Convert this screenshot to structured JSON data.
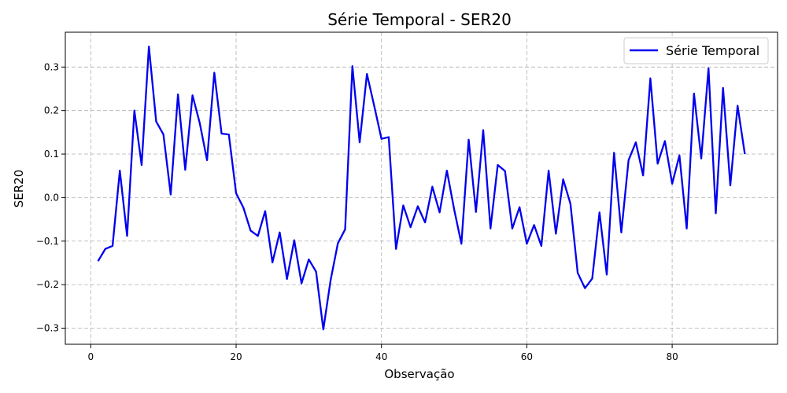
{
  "chart_data": {
    "type": "line",
    "title": "Série Temporal - SER20",
    "xlabel": "Observação",
    "ylabel": "SER20",
    "xlim": [
      -3.5,
      94.5
    ],
    "ylim": [
      -0.337,
      0.38
    ],
    "xticks": [
      0,
      20,
      40,
      60,
      80
    ],
    "yticks": [
      -0.3,
      -0.2,
      -0.1,
      0.0,
      0.1,
      0.2,
      0.3
    ],
    "ytick_labels": [
      "−0.3",
      "−0.2",
      "−0.1",
      "0.0",
      "0.1",
      "0.2",
      "0.3"
    ],
    "grid": true,
    "legend_position": "top-right",
    "series": [
      {
        "name": "Série Temporal",
        "color": "#0000ee",
        "x": [
          1,
          2,
          3,
          4,
          5,
          6,
          7,
          8,
          9,
          10,
          11,
          12,
          13,
          14,
          15,
          16,
          17,
          18,
          19,
          20,
          21,
          22,
          23,
          24,
          25,
          26,
          27,
          28,
          29,
          30,
          31,
          32,
          33,
          34,
          35,
          36,
          37,
          38,
          39,
          40,
          41,
          42,
          43,
          44,
          45,
          46,
          47,
          48,
          49,
          50,
          51,
          52,
          53,
          54,
          55,
          56,
          57,
          58,
          59,
          60,
          61,
          62,
          63,
          64,
          65,
          66,
          67,
          68,
          69,
          70,
          71,
          72,
          73,
          74,
          75,
          76,
          77,
          78,
          79,
          80,
          81,
          82,
          83,
          84,
          85,
          86,
          87,
          88,
          89,
          90
        ],
        "y": [
          -0.146,
          -0.118,
          -0.111,
          0.062,
          -0.088,
          0.2,
          0.075,
          0.347,
          0.175,
          0.145,
          0.007,
          0.237,
          0.064,
          0.235,
          0.171,
          0.086,
          0.287,
          0.147,
          0.145,
          0.01,
          -0.023,
          -0.076,
          -0.088,
          -0.031,
          -0.149,
          -0.08,
          -0.187,
          -0.098,
          -0.197,
          -0.142,
          -0.17,
          -0.303,
          -0.19,
          -0.105,
          -0.073,
          0.302,
          0.127,
          0.284,
          0.211,
          0.135,
          0.139,
          -0.118,
          -0.018,
          -0.068,
          -0.02,
          -0.057,
          0.025,
          -0.034,
          0.062,
          -0.027,
          -0.106,
          0.133,
          -0.033,
          0.155,
          -0.071,
          0.075,
          0.061,
          -0.071,
          -0.022,
          -0.106,
          -0.063,
          -0.111,
          0.062,
          -0.083,
          0.042,
          -0.014,
          -0.173,
          -0.208,
          -0.186,
          -0.034,
          -0.177,
          0.103,
          -0.08,
          0.086,
          0.127,
          0.051,
          0.274,
          0.078,
          0.13,
          0.032,
          0.097,
          -0.071,
          0.239,
          0.09,
          0.297,
          -0.036,
          0.252,
          0.028,
          0.211,
          0.1
        ]
      }
    ]
  }
}
